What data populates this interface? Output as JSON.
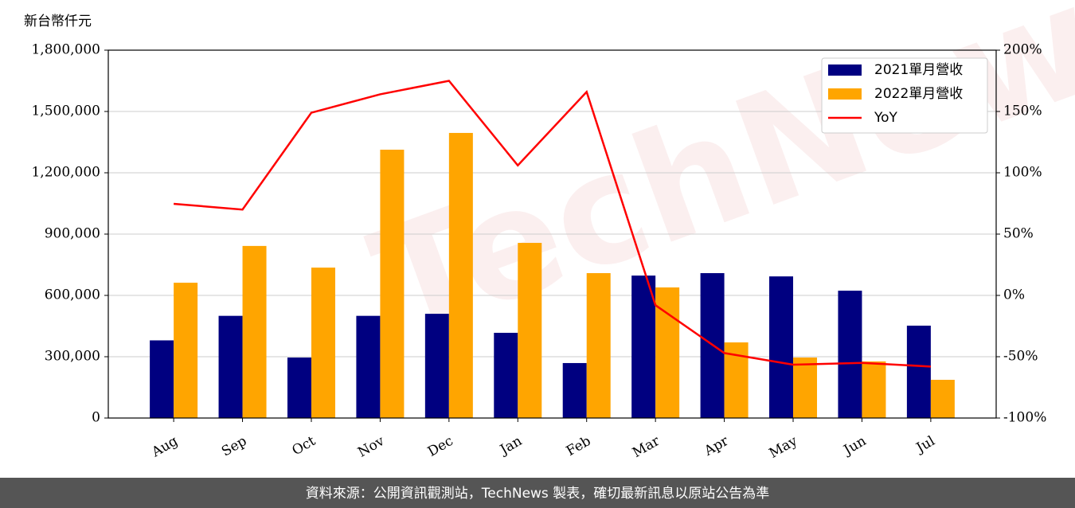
{
  "chart_data": {
    "type": "bar-line",
    "ylabel": "新台幣仟元",
    "categories": [
      "Aug",
      "Sep",
      "Oct",
      "Nov",
      "Dec",
      "Jan",
      "Feb",
      "Mar",
      "Apr",
      "May",
      "Jun",
      "Jul"
    ],
    "series": [
      {
        "name": "2021單月營收",
        "type": "bar",
        "color": "#000080",
        "values": [
          380000,
          500000,
          296000,
          500000,
          510000,
          417000,
          269000,
          697000,
          709000,
          693000,
          623000,
          452000
        ]
      },
      {
        "name": "2022單月營收",
        "type": "bar",
        "color": "#ffa500",
        "values": [
          662000,
          842000,
          736000,
          1313000,
          1395000,
          857000,
          709000,
          639000,
          370000,
          296000,
          277000,
          187000
        ]
      },
      {
        "name": "YoY",
        "type": "line",
        "axis": "y2",
        "color": "#ff0000",
        "values": [
          74.7,
          70,
          149,
          164,
          175,
          106,
          166,
          -8,
          -47,
          -56.5,
          -55,
          -58
        ]
      }
    ],
    "ylim": [
      0,
      1800000
    ],
    "yticks": [
      0,
      {
        "value": 300000,
        "label": "300,000"
      },
      {
        "value": 600000,
        "label": "600,000"
      },
      {
        "value": 900000,
        "label": "900,000"
      },
      {
        "value": 1200000,
        "label": "1,200,000"
      },
      {
        "value": 1500000,
        "label": "1,500,000"
      },
      {
        "value": 1800000,
        "label": "1,800,000"
      }
    ],
    "y2lim": [
      -100,
      200
    ],
    "y2ticks": [
      {
        "value": -100,
        "label": "-100%"
      },
      {
        "value": -50,
        "label": "-50%"
      },
      {
        "value": 0,
        "label": "0%"
      },
      {
        "value": 50,
        "label": "50%"
      },
      {
        "value": 100,
        "label": "100%"
      },
      {
        "value": 150,
        "label": "150%"
      },
      {
        "value": 200,
        "label": "200%"
      }
    ],
    "grid": true,
    "legend": "upper right"
  },
  "watermark": "TechNews",
  "footer": "資料來源：公開資訊觀測站，TechNews 製表，確切最新訊息以原站公告為準"
}
